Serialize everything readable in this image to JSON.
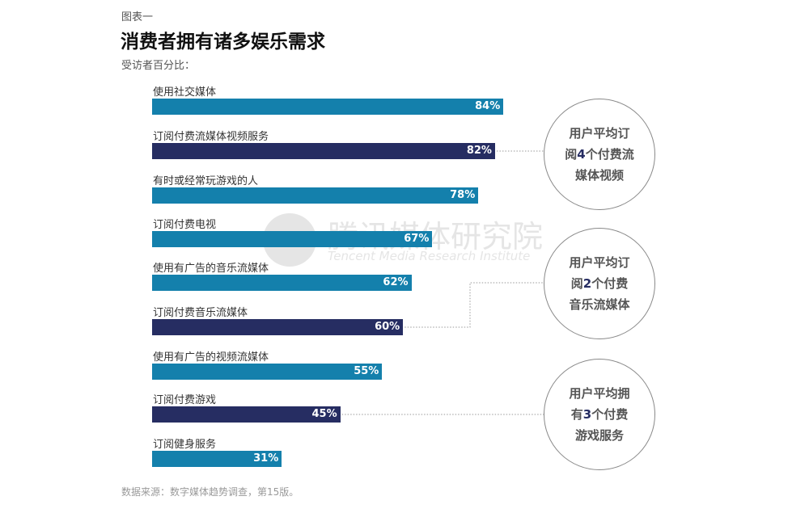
{
  "figure_label": "图表一",
  "chart_data": {
    "type": "bar",
    "orientation": "horizontal",
    "title": "消费者拥有诸多娱乐需求",
    "subtitle": "受访者百分比：",
    "unit": "%",
    "categories": [
      "使用社交媒体",
      "订阅付费流媒体视频服务",
      "有时或经常玩游戏的人",
      "订阅付费电视",
      "使用有广告的音乐流媒体",
      "订阅付费音乐流媒体",
      "使用有广告的视频流媒体",
      "订阅付费游戏",
      "订阅健身服务"
    ],
    "values": [
      84,
      82,
      78,
      67,
      62,
      60,
      55,
      45,
      31
    ],
    "value_labels": [
      "84%",
      "82%",
      "78%",
      "67%",
      "62%",
      "60%",
      "55%",
      "45%",
      "31%"
    ],
    "bar_colors": [
      "#1480ac",
      "#262d62",
      "#1480ac",
      "#1480ac",
      "#1480ac",
      "#262d62",
      "#1480ac",
      "#262d62",
      "#1480ac"
    ],
    "annotations": [
      {
        "target": 1,
        "lines": [
          "用户平均订",
          "阅",
          "4",
          "个付费流",
          "媒体视频"
        ]
      },
      {
        "target": 5,
        "lines": [
          "用户平均订",
          "阅",
          "2",
          "个付费",
          "音乐流媒体"
        ]
      },
      {
        "target": 7,
        "lines": [
          "用户平均拥",
          "有",
          "3",
          "个付费",
          "游戏服务"
        ]
      }
    ]
  },
  "watermark": {
    "cn": "腾讯媒体研究院",
    "en": "Tencent Media Research Institute"
  },
  "source": "数据来源：数字媒体趋势调查，第15版。"
}
